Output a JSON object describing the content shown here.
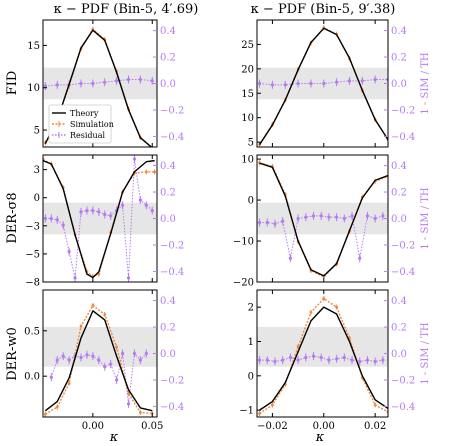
{
  "figure": {
    "colors": {
      "theory": "#000000",
      "simulation": "#f0883e",
      "residual": "#b47bf2",
      "band": "#e6e6e6"
    },
    "legend": {
      "theory": "Theory",
      "simulation": "Simulation",
      "residual": "Residual",
      "placement": "lower-left of top-left panel"
    },
    "right_axis_label": "1 - SIM / TH"
  },
  "columns": [
    {
      "title": "κ − PDF (Bin-5, 4′.69)",
      "xlabel": "κ",
      "xlim": [
        -0.042,
        0.054
      ],
      "xticks": [
        -0.05,
        0.0,
        0.05
      ],
      "xticklabels": [
        "−0.05",
        "0.00",
        "0.05"
      ]
    },
    {
      "title": "κ − PDF (Bin-5, 9′.38)",
      "xlabel": "κ",
      "xlim": [
        -0.026,
        0.025
      ],
      "xticks": [
        -0.02,
        0.0,
        0.02
      ],
      "xticklabels": [
        "−0.02",
        "0.00",
        "0.02"
      ]
    }
  ],
  "rows": [
    {
      "ylabel": "FID"
    },
    {
      "ylabel": "DER-σ8"
    },
    {
      "ylabel": "DER-w0"
    }
  ],
  "chart_data": [
    {
      "type": "line",
      "panel": "FID, Bin-5 4′.69",
      "ylim": [
        3,
        18
      ],
      "yticks": [
        5,
        10,
        15
      ],
      "y2lim": [
        -0.48,
        0.48
      ],
      "y2ticks": [
        -0.4,
        -0.2,
        0.0,
        0.2,
        0.4
      ],
      "band": [
        -0.12,
        0.12
      ],
      "grid": false,
      "legend": true,
      "series": [
        {
          "name": "Theory",
          "x": [
            -0.04,
            -0.03,
            -0.02,
            -0.01,
            0.0,
            0.01,
            0.02,
            0.03,
            0.04,
            0.05
          ],
          "values": [
            3.4,
            6.2,
            10.4,
            14.7,
            16.8,
            15.6,
            11.8,
            7.4,
            4.1,
            2.9
          ]
        },
        {
          "name": "Simulation",
          "x": [
            -0.04,
            -0.03,
            -0.02,
            -0.01,
            0.0,
            0.01,
            0.02,
            0.03,
            0.04,
            0.05
          ],
          "values": [
            3.5,
            6.1,
            10.3,
            14.6,
            16.9,
            15.7,
            11.9,
            7.5,
            4.1,
            2.9
          ]
        },
        {
          "name": "Residual",
          "x": [
            -0.04,
            -0.03,
            -0.02,
            -0.01,
            0.0,
            0.01,
            0.02,
            0.03,
            0.04,
            0.05
          ],
          "values": [
            -0.02,
            -0.01,
            -0.01,
            0.0,
            0.0,
            0.01,
            0.02,
            0.03,
            0.03,
            0.02
          ]
        }
      ]
    },
    {
      "type": "line",
      "panel": "FID, Bin-5 9′.38",
      "ylim": [
        4,
        30
      ],
      "yticks": [
        5,
        10,
        15,
        20,
        25
      ],
      "y2lim": [
        -0.48,
        0.48
      ],
      "y2ticks": [
        -0.4,
        -0.2,
        0.0,
        0.2,
        0.4
      ],
      "band": [
        -0.12,
        0.12
      ],
      "grid": false,
      "legend": false,
      "series": [
        {
          "name": "Theory",
          "x": [
            -0.025,
            -0.02,
            -0.015,
            -0.01,
            -0.005,
            0.0,
            0.005,
            0.01,
            0.015,
            0.02,
            0.025
          ],
          "values": [
            4.5,
            8.5,
            13.6,
            19.8,
            25.4,
            28.3,
            27.0,
            22.2,
            15.6,
            9.6,
            5.5
          ]
        },
        {
          "name": "Simulation",
          "x": [
            -0.025,
            -0.02,
            -0.015,
            -0.01,
            -0.005,
            0.0,
            0.005,
            0.01,
            0.015,
            0.02,
            0.025
          ],
          "values": [
            4.5,
            8.6,
            13.6,
            19.9,
            25.3,
            28.4,
            27.1,
            22.1,
            15.6,
            9.6,
            5.5
          ]
        },
        {
          "name": "Residual",
          "x": [
            -0.025,
            -0.02,
            -0.015,
            -0.01,
            -0.005,
            0.0,
            0.005,
            0.01,
            0.015,
            0.02,
            0.025
          ],
          "values": [
            0.0,
            -0.01,
            -0.01,
            0.0,
            0.0,
            0.0,
            0.01,
            0.02,
            0.02,
            0.03,
            0.03
          ]
        }
      ]
    },
    {
      "type": "line",
      "panel": "DER-σ8, Bin-5 4′.69",
      "ylim": [
        -7.5,
        3.8
      ],
      "yticks": [
        -7.5,
        -5.0,
        -2.5,
        0.0,
        2.5
      ],
      "y2lim": [
        -0.48,
        0.48
      ],
      "y2ticks": [
        -0.4,
        -0.2,
        0.0,
        0.2,
        0.4
      ],
      "band": [
        -0.12,
        0.12
      ],
      "grid": false,
      "legend": false,
      "series": [
        {
          "name": "Theory",
          "x": [
            -0.042,
            -0.035,
            -0.025,
            -0.015,
            -0.005,
            0.0,
            0.005,
            0.015,
            0.025,
            0.035,
            0.045,
            0.052
          ],
          "values": [
            3.3,
            3.0,
            0.8,
            -3.3,
            -6.8,
            -7.1,
            -6.6,
            -3.2,
            0.5,
            2.3,
            3.2,
            3.3
          ]
        },
        {
          "name": "Simulation",
          "x": [
            -0.042,
            -0.035,
            -0.025,
            -0.015,
            -0.005,
            0.0,
            0.005,
            0.015,
            0.025,
            0.035,
            0.045,
            0.052
          ],
          "values": [
            3.4,
            3.0,
            0.9,
            -3.3,
            -6.6,
            -7.0,
            -6.8,
            -3.1,
            0.5,
            2.2,
            2.3,
            2.3
          ]
        },
        {
          "name": "Residual",
          "x": [
            -0.04,
            -0.035,
            -0.03,
            -0.025,
            -0.02,
            -0.015,
            -0.01,
            -0.005,
            0.0,
            0.005,
            0.01,
            0.015,
            0.02,
            0.025,
            0.03,
            0.035,
            0.04,
            0.045,
            0.05
          ],
          "values": [
            0.0,
            0.0,
            -0.01,
            -0.05,
            -0.25,
            -0.45,
            0.05,
            0.06,
            0.06,
            0.05,
            0.03,
            0.02,
            0.06,
            0.1,
            -0.45,
            0.45,
            0.14,
            0.1,
            0.06
          ]
        }
      ]
    },
    {
      "type": "line",
      "panel": "DER-σ8, Bin-5 9′.38",
      "ylim": [
        -20,
        11
      ],
      "yticks": [
        -20,
        -10,
        0,
        10
      ],
      "y2lim": [
        -0.48,
        0.48
      ],
      "y2ticks": [
        -0.4,
        -0.2,
        0.0,
        0.2,
        0.4
      ],
      "band": [
        -0.12,
        0.12
      ],
      "grid": false,
      "legend": false,
      "series": [
        {
          "name": "Theory",
          "x": [
            -0.025,
            -0.02,
            -0.015,
            -0.01,
            -0.005,
            0.0,
            0.005,
            0.01,
            0.015,
            0.02,
            0.025
          ],
          "values": [
            9.0,
            8.0,
            1.0,
            -10.0,
            -17.0,
            -18.5,
            -15.5,
            -7.5,
            0.5,
            4.8,
            6.0
          ]
        },
        {
          "name": "Simulation",
          "x": [
            -0.025,
            -0.02,
            -0.015,
            -0.01,
            -0.005,
            0.0,
            0.005,
            0.01,
            0.015,
            0.02,
            0.025
          ],
          "values": [
            9.1,
            8.2,
            1.4,
            -10.1,
            -17.2,
            -18.7,
            -15.6,
            -7.6,
            0.7,
            4.6,
            5.8
          ]
        },
        {
          "name": "Residual",
          "x": [
            -0.025,
            -0.022,
            -0.019,
            -0.016,
            -0.013,
            -0.01,
            -0.007,
            -0.004,
            -0.001,
            0.002,
            0.005,
            0.008,
            0.011,
            0.014,
            0.017,
            0.02,
            0.023
          ],
          "values": [
            -0.03,
            -0.03,
            -0.04,
            -0.02,
            -0.3,
            0.0,
            0.01,
            0.02,
            0.02,
            0.01,
            0.01,
            0.0,
            0.02,
            -0.3,
            0.02,
            0.0,
            0.02
          ]
        }
      ]
    },
    {
      "type": "line",
      "panel": "DER-w0, Bin-5 4′.69",
      "ylim": [
        -0.45,
        0.95
      ],
      "yticks": [
        0.0,
        0.5
      ],
      "y2lim": [
        -0.48,
        0.48
      ],
      "y2ticks": [
        -0.4,
        -0.2,
        0.0,
        0.2,
        0.4
      ],
      "band": [
        -0.1,
        0.2
      ],
      "grid": false,
      "legend": false,
      "series": [
        {
          "name": "Theory",
          "x": [
            -0.04,
            -0.03,
            -0.02,
            -0.01,
            0.0,
            0.01,
            0.02,
            0.03,
            0.04,
            0.05
          ],
          "values": [
            -0.38,
            -0.28,
            -0.02,
            0.42,
            0.72,
            0.62,
            0.22,
            -0.15,
            -0.35,
            -0.38
          ]
        },
        {
          "name": "Simulation",
          "x": [
            -0.04,
            -0.03,
            -0.02,
            -0.01,
            0.0,
            0.01,
            0.02,
            0.03,
            0.04,
            0.05
          ],
          "values": [
            -0.42,
            -0.34,
            -0.08,
            0.55,
            0.78,
            0.68,
            0.32,
            -0.19,
            -0.4,
            -0.41
          ]
        },
        {
          "name": "Residual",
          "x": [
            -0.035,
            -0.03,
            -0.025,
            -0.02,
            -0.015,
            -0.01,
            -0.005,
            0.0,
            0.005,
            0.01,
            0.015,
            0.02,
            0.025,
            0.03,
            0.035,
            0.04,
            0.045
          ],
          "values": [
            -0.18,
            -0.05,
            -0.02,
            -0.05,
            -0.02,
            -0.03,
            -0.01,
            -0.02,
            -0.05,
            -0.1,
            -0.08,
            -0.2,
            0.0,
            -0.38,
            0.0,
            -0.05,
            0.0
          ]
        }
      ]
    },
    {
      "type": "line",
      "panel": "DER-w0, Bin-5 9′.38",
      "ylim": [
        -1.2,
        2.5
      ],
      "yticks": [
        -1,
        0,
        1,
        2
      ],
      "y2lim": [
        -0.48,
        0.48
      ],
      "y2ticks": [
        -0.4,
        -0.2,
        0.0,
        0.2,
        0.4
      ],
      "band": [
        -0.1,
        0.2
      ],
      "grid": false,
      "legend": false,
      "series": [
        {
          "name": "Theory",
          "x": [
            -0.025,
            -0.02,
            -0.015,
            -0.01,
            -0.005,
            0.0,
            0.005,
            0.01,
            0.015,
            0.02,
            0.025
          ],
          "values": [
            -1.0,
            -0.75,
            -0.2,
            0.7,
            1.6,
            2.0,
            1.8,
            1.0,
            0.0,
            -0.7,
            -0.95
          ]
        },
        {
          "name": "Simulation",
          "x": [
            -0.025,
            -0.02,
            -0.015,
            -0.01,
            -0.005,
            0.0,
            0.005,
            0.01,
            0.015,
            0.02,
            0.025
          ],
          "values": [
            -1.1,
            -0.85,
            -0.25,
            0.85,
            1.85,
            2.25,
            2.0,
            1.1,
            -0.05,
            -0.85,
            -1.05
          ]
        },
        {
          "name": "Residual",
          "x": [
            -0.025,
            -0.022,
            -0.019,
            -0.016,
            -0.013,
            -0.01,
            -0.007,
            -0.004,
            -0.001,
            0.002,
            0.005,
            0.008,
            0.011,
            0.014,
            0.017,
            0.02,
            0.023
          ],
          "values": [
            -0.05,
            -0.05,
            -0.06,
            -0.05,
            -0.03,
            -0.05,
            -0.03,
            -0.02,
            -0.03,
            -0.05,
            -0.04,
            -0.03,
            -0.05,
            -0.06,
            -0.05,
            -0.06,
            -0.05
          ]
        }
      ]
    }
  ]
}
